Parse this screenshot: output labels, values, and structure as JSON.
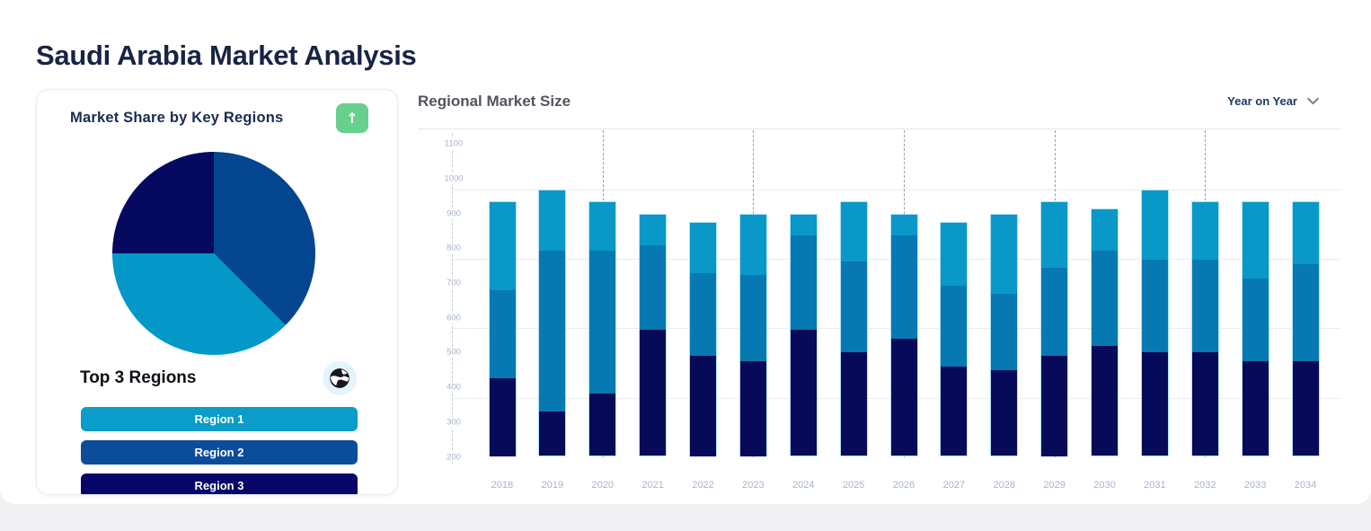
{
  "page": {
    "title": "Saudi Arabia Market Analysis"
  },
  "market_share_card": {
    "title": "Market Share by Key Regions",
    "expand_button": {
      "icon": "arrow-up",
      "glyph": "↑",
      "color": "#67d08d"
    },
    "pie": {
      "slices": [
        {
          "label": "Region 2",
          "percent": 37.5,
          "color": "#03468f"
        },
        {
          "label": "Region 1",
          "percent": 37.5,
          "color": "#0398c8"
        },
        {
          "label": "Region 3",
          "percent": 25.0,
          "color": "#050a60"
        }
      ]
    },
    "subtitle": "Top 3 Regions",
    "globe_icon": "globe-icon",
    "regions": [
      {
        "label": "Region 1",
        "color": "#0a9cca"
      },
      {
        "label": "Region 2",
        "color": "#0b4d9b"
      },
      {
        "label": "Region 3",
        "color": "#06066a"
      }
    ]
  },
  "chart_panel": {
    "title": "Regional Market Size",
    "filter_label": "Year on Year"
  },
  "chart_data": {
    "type": "bar",
    "stacked": true,
    "title": "Regional Market Size",
    "x": [
      "2018",
      "2019",
      "2020",
      "2021",
      "2022",
      "2023",
      "2024",
      "2025",
      "2026",
      "2027",
      "2028",
      "2029",
      "2030",
      "2031",
      "2032",
      "2033",
      "2034"
    ],
    "baseline": 200,
    "ylim": [
      200,
      1140
    ],
    "y_ticks": [
      200,
      300,
      400,
      500,
      600,
      700,
      800,
      900,
      1000,
      1100
    ],
    "gridline_values": [
      370,
      570,
      770,
      970
    ],
    "dashed_guide_years": [
      "2020",
      "2023",
      "2026",
      "2029",
      "2032"
    ],
    "grid": true,
    "legend": "none",
    "series": [
      {
        "name": "Region 3",
        "color": "#070a58",
        "stack_top": [
          425,
          330,
          380,
          565,
          490,
          475,
          565,
          500,
          540,
          460,
          450,
          490,
          520,
          500,
          500,
          475,
          475
        ]
      },
      {
        "name": "Region 2",
        "color": "#0779b2",
        "stack_top": [
          680,
          795,
          795,
          810,
          730,
          725,
          840,
          765,
          840,
          695,
          670,
          745,
          795,
          770,
          770,
          715,
          755
        ]
      },
      {
        "name": "Region 1",
        "color": "#0998c8",
        "stack_top": [
          935,
          970,
          935,
          900,
          875,
          900,
          900,
          935,
          900,
          875,
          900,
          935,
          915,
          970,
          935,
          935,
          935
        ]
      }
    ]
  }
}
